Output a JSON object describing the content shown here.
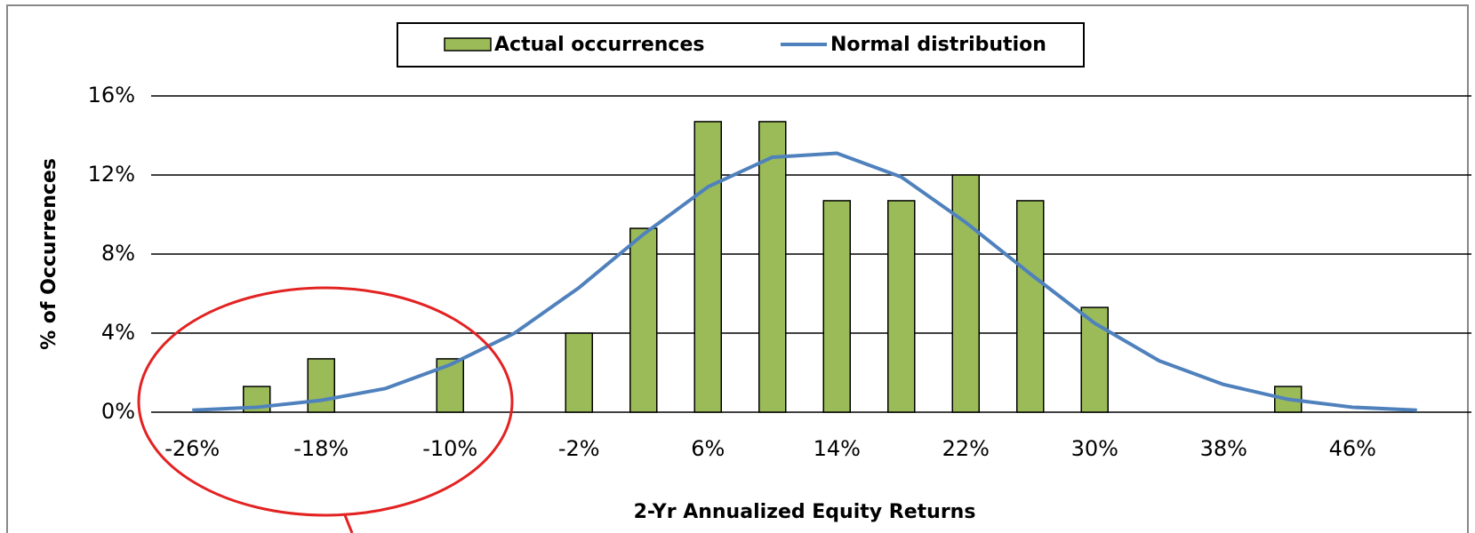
{
  "chart_data": {
    "type": "bar",
    "x_label": "2-Yr Annualized Equity Returns",
    "y_label": "% of Occurrences",
    "categories": [
      "-26%",
      null,
      "-18%",
      null,
      "-10%",
      null,
      "-2%",
      null,
      "6%",
      null,
      "14%",
      null,
      "22%",
      null,
      "30%",
      null,
      "38%",
      null,
      "46%",
      null
    ],
    "series": [
      {
        "name": "Actual occurrences",
        "type": "bar",
        "color": "#9bbb59",
        "values": [
          0,
          1.3,
          2.7,
          0,
          2.7,
          0,
          4.0,
          9.3,
          14.7,
          14.7,
          10.7,
          10.7,
          12.0,
          10.7,
          5.3,
          0,
          0,
          1.3,
          0,
          0
        ]
      },
      {
        "name": "Normal distribution",
        "type": "line",
        "color": "#4f81bd",
        "values": [
          0.1,
          0.25,
          0.6,
          1.2,
          2.4,
          4.0,
          6.3,
          9.0,
          11.4,
          12.9,
          13.1,
          11.9,
          9.6,
          7.0,
          4.5,
          2.6,
          1.4,
          0.65,
          0.25,
          0.1
        ]
      }
    ],
    "ylim": [
      0,
      16
    ],
    "yticks": [
      {
        "value": 0,
        "label": "0%"
      },
      {
        "value": 4,
        "label": "4%"
      },
      {
        "value": 8,
        "label": "8%"
      },
      {
        "value": 12,
        "label": "12%"
      },
      {
        "value": 16,
        "label": "16%"
      }
    ],
    "grid": true,
    "legend": "top"
  }
}
